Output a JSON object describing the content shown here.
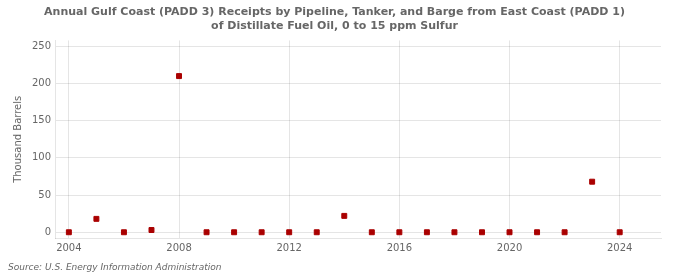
{
  "chart_data": {
    "type": "scatter",
    "title": "Annual Gulf Coast (PADD 3) Receipts by Pipeline, Tanker, and Barge from East Coast (PADD 1)\nof Distillate Fuel Oil, 0 to 15 ppm Sulfur",
    "ylabel": "Thousand Barrels",
    "annotations": [
      "Source: U.S. Energy Information Administration"
    ],
    "x": [
      2004,
      2005,
      2006,
      2007,
      2008,
      2009,
      2010,
      2011,
      2012,
      2013,
      2014,
      2015,
      2016,
      2017,
      2018,
      2019,
      2020,
      2021,
      2022,
      2023,
      2024
    ],
    "values": [
      0,
      18,
      0,
      3,
      210,
      0,
      0,
      0,
      0,
      0,
      22,
      0,
      0,
      0,
      0,
      0,
      0,
      0,
      0,
      68,
      0
    ],
    "color": "#aa0000",
    "marker": "square",
    "xlim": [
      2003.5,
      2025.5
    ],
    "xticks": [
      2004,
      2008,
      2012,
      2016,
      2020,
      2024
    ],
    "ylim": [
      -8,
      258
    ],
    "yticks": [
      0,
      50,
      100,
      150,
      200,
      250
    ],
    "grid": true
  }
}
